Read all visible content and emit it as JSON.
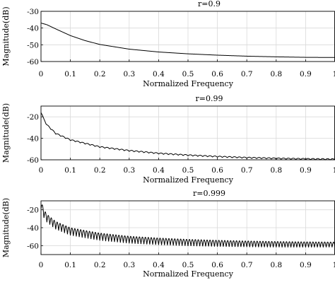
{
  "chart_data": [
    {
      "type": "line",
      "title": "r=0.9",
      "xlabel": "Normalized Frequency",
      "ylabel": "Magnitude(dB)",
      "xlim": [
        0,
        1
      ],
      "ylim": [
        -60,
        -30
      ],
      "xticks": [
        "0",
        "0.1",
        "0.2",
        "0.3",
        "0.4",
        "0.5",
        "0.6",
        "0.7",
        "0.8",
        "0.9",
        "1"
      ],
      "yticks": [
        "-30",
        "-40",
        "-50",
        "-60"
      ],
      "grid": true,
      "series": [
        {
          "x": [
            0,
            0.02,
            0.05,
            0.1,
            0.15,
            0.2,
            0.3,
            0.4,
            0.5,
            0.6,
            0.7,
            0.8,
            0.9,
            1.0
          ],
          "y": [
            -37,
            -38,
            -40.5,
            -44.5,
            -47.5,
            -49.8,
            -52.6,
            -54.3,
            -55.4,
            -56.2,
            -56.8,
            -57.2,
            -57.5,
            -57.6
          ]
        }
      ]
    },
    {
      "type": "line",
      "title": "r=0.99",
      "xlabel": "Normalized Frequency",
      "ylabel": "Magnitude(dB)",
      "xlim": [
        0,
        1
      ],
      "ylim": [
        -60,
        -10
      ],
      "xticks": [
        "0",
        "0.1",
        "0.2",
        "0.3",
        "0.4",
        "0.5",
        "0.6",
        "0.7",
        "0.8",
        "0.9",
        "1"
      ],
      "yticks": [
        "-20",
        "-40",
        "-60"
      ],
      "grid": true,
      "series": [
        {
          "x": [
            0,
            0.01,
            0.02,
            0.05,
            0.1,
            0.2,
            0.3,
            0.4,
            0.5,
            0.6,
            0.7,
            0.8,
            0.9,
            1.0
          ],
          "y": [
            -15,
            -22,
            -27,
            -35,
            -41,
            -47.5,
            -51,
            -53.5,
            -55.2,
            -56.5,
            -57.5,
            -58.2,
            -58.7,
            -59
          ]
        }
      ]
    },
    {
      "type": "line",
      "title": "r=0.999",
      "xlabel": "Normalized Frequency",
      "ylabel": "Magnitude(dB)",
      "xlim": [
        0,
        1
      ],
      "ylim": [
        -70,
        -10
      ],
      "xticks": [
        "0",
        "0.1",
        "0.2",
        "0.3",
        "0.4",
        "0.5",
        "0.6",
        "0.7",
        "0.8",
        "0.9",
        "1"
      ],
      "yticks": [
        "-20",
        "-40",
        "-60"
      ],
      "grid": true,
      "series": [
        {
          "x": [
            0,
            0.01,
            0.02,
            0.05,
            0.1,
            0.2,
            0.3,
            0.4,
            0.5,
            0.6,
            0.7,
            0.8,
            0.9,
            1.0
          ],
          "y": [
            -10,
            -20,
            -25,
            -33,
            -40,
            -46,
            -49.5,
            -51.5,
            -53,
            -54,
            -54.8,
            -55.4,
            -55.8,
            -56
          ]
        }
      ]
    }
  ]
}
